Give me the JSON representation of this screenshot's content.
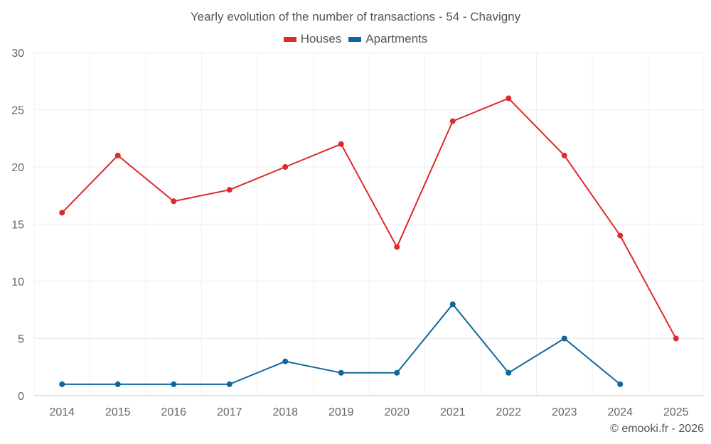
{
  "chart_data": {
    "type": "line",
    "title": "Yearly evolution of the number of transactions - 54 - Chavigny",
    "xlabel": "",
    "ylabel": "",
    "categories": [
      "2014",
      "2015",
      "2016",
      "2017",
      "2018",
      "2019",
      "2020",
      "2021",
      "2022",
      "2023",
      "2024",
      "2025"
    ],
    "ylim": [
      0,
      30
    ],
    "yticks": [
      0,
      5,
      10,
      15,
      20,
      25,
      30
    ],
    "grid": true,
    "legend_position": "top-center",
    "series": [
      {
        "name": "Houses",
        "color": "#dd2a2a",
        "values": [
          16,
          21,
          17,
          18,
          20,
          22,
          13,
          24,
          26,
          21,
          14,
          5
        ]
      },
      {
        "name": "Apartments",
        "color": "#10679e",
        "values": [
          1,
          1,
          1,
          1,
          3,
          2,
          2,
          8,
          2,
          5,
          1,
          null
        ]
      }
    ]
  },
  "credit": "© emooki.fr - 2026"
}
